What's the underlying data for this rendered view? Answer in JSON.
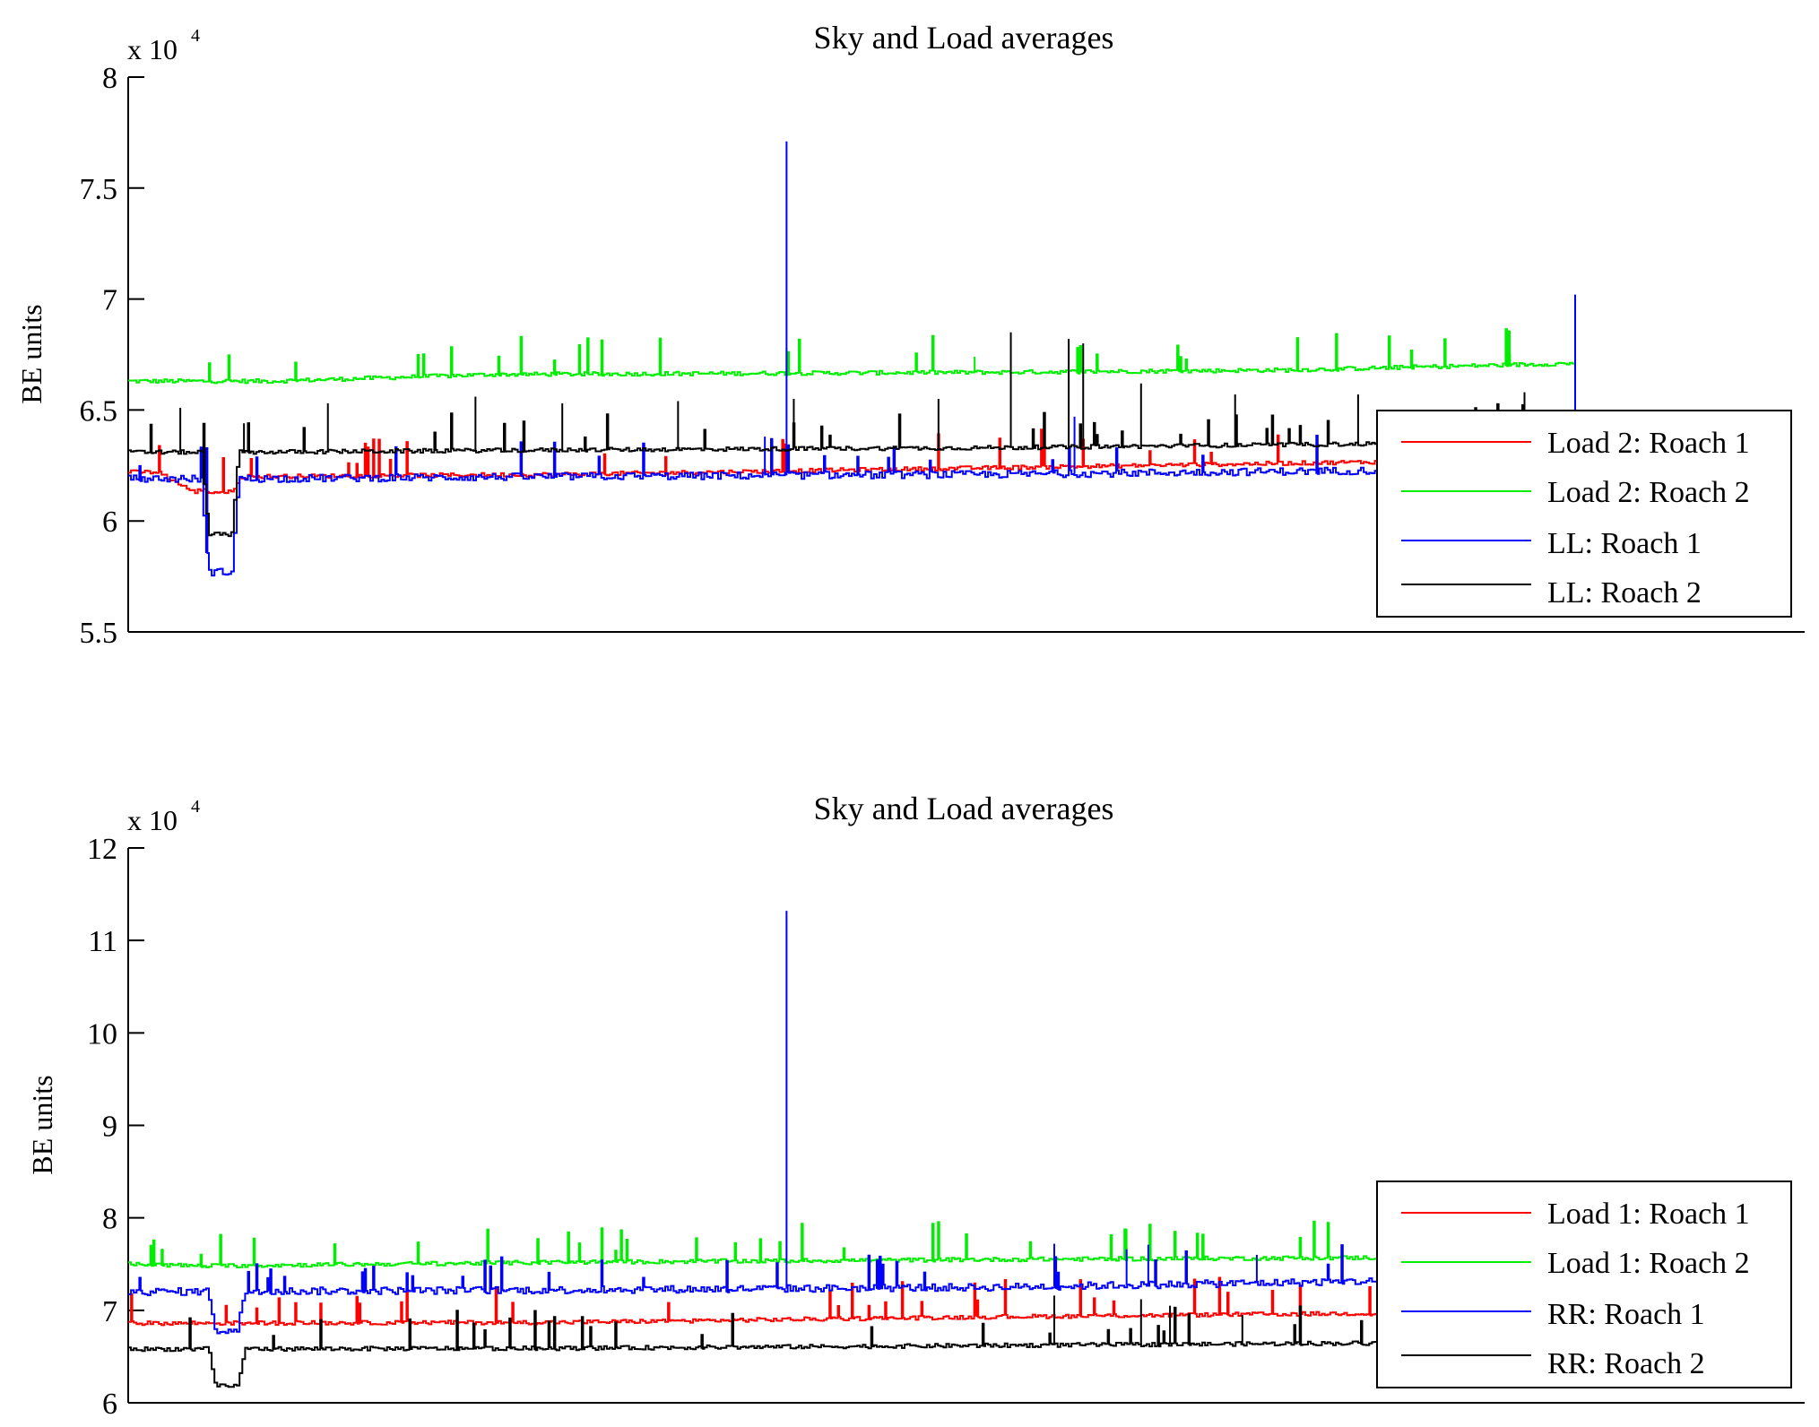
{
  "chart_data": [
    {
      "type": "line",
      "title": "Sky and Load averages",
      "xlabel": "",
      "ylabel": "BE units",
      "exponent_label": "x 10",
      "exponent_power": "4",
      "ylim": [
        5.5,
        8
      ],
      "yticks": [
        5.5,
        6,
        6.5,
        7,
        7.5,
        8
      ],
      "ytick_labels": [
        "5.5",
        "6",
        "6.5",
        "7",
        "7.5",
        "8"
      ],
      "x_range": [
        0,
        1000
      ],
      "legend_position": "right",
      "series": [
        {
          "name": "Load 2: Roach 1",
          "color": "#ff0000",
          "base": [
            [
              0,
              6.22
            ],
            [
              20,
              6.22
            ],
            [
              45,
              6.13
            ],
            [
              80,
              6.2
            ],
            [
              300,
              6.21
            ],
            [
              600,
              6.24
            ],
            [
              900,
              6.27
            ],
            [
              1000,
              6.28
            ]
          ],
          "dips": [
            [
              50,
              76,
              6.13
            ]
          ],
          "spikes": []
        },
        {
          "name": "Load 2: Roach 2",
          "color": "#00ee00",
          "base": [
            [
              0,
              6.63
            ],
            [
              100,
              6.63
            ],
            [
              250,
              6.66
            ],
            [
              600,
              6.67
            ],
            [
              800,
              6.68
            ],
            [
              1000,
              6.71
            ]
          ],
          "dips": [],
          "spikes": [
            [
              455,
              6.78
            ],
            [
              585,
              6.74
            ],
            [
              955,
              6.75
            ]
          ]
        },
        {
          "name": "LL: Roach 1",
          "color": "#0000ff",
          "base": [
            [
              0,
              6.19
            ],
            [
              20,
              6.19
            ],
            [
              80,
              6.19
            ],
            [
              300,
              6.2
            ],
            [
              600,
              6.21
            ],
            [
              900,
              6.23
            ],
            [
              1000,
              6.24
            ]
          ],
          "dips": [
            [
              50,
              76,
              5.77
            ]
          ],
          "spikes": [
            [
              455,
              7.71
            ],
            [
              1000,
              7.02
            ],
            [
              654,
              6.47
            ],
            [
              440,
              6.38
            ]
          ]
        },
        {
          "name": "LL: Roach 2",
          "color": "#000000",
          "base": [
            [
              0,
              6.31
            ],
            [
              20,
              6.31
            ],
            [
              80,
              6.31
            ],
            [
              300,
              6.32
            ],
            [
              600,
              6.33
            ],
            [
              900,
              6.35
            ],
            [
              1000,
              6.37
            ]
          ],
          "dips": [
            [
              50,
              76,
              5.94
            ]
          ],
          "spikes": [
            [
              36,
              6.51
            ],
            [
              80,
              6.44
            ],
            [
              138,
              6.53
            ],
            [
              240,
              6.56
            ],
            [
              300,
              6.53
            ],
            [
              380,
              6.54
            ],
            [
              460,
              6.55
            ],
            [
              560,
              6.55
            ],
            [
              610,
              6.85
            ],
            [
              650,
              6.82
            ],
            [
              660,
              6.8
            ],
            [
              700,
              6.62
            ],
            [
              765,
              6.57
            ],
            [
              850,
              6.57
            ],
            [
              965,
              6.58
            ]
          ]
        }
      ]
    },
    {
      "type": "line",
      "title": "Sky and Load averages",
      "xlabel": "",
      "ylabel": "BE units",
      "exponent_label": "x 10",
      "exponent_power": "4",
      "ylim": [
        6,
        12
      ],
      "yticks": [
        6,
        7,
        8,
        9,
        10,
        11,
        12
      ],
      "ytick_labels": [
        "6",
        "7",
        "8",
        "9",
        "10",
        "11",
        "12"
      ],
      "x_range": [
        0,
        1000
      ],
      "legend_position": "right",
      "series": [
        {
          "name": "Load 1: Roach 1",
          "color": "#ff0000",
          "base": [
            [
              0,
              6.86
            ],
            [
              300,
              6.87
            ],
            [
              600,
              6.93
            ],
            [
              800,
              6.96
            ],
            [
              1000,
              6.98
            ]
          ],
          "dips": [],
          "spikes": []
        },
        {
          "name": "Load 1: Roach 2",
          "color": "#00ee00",
          "base": [
            [
              0,
              7.5
            ],
            [
              50,
              7.48
            ],
            [
              300,
              7.52
            ],
            [
              600,
              7.55
            ],
            [
              1000,
              7.58
            ]
          ],
          "dips": [],
          "spikes": [
            [
              690,
              7.88
            ]
          ]
        },
        {
          "name": "RR: Roach 1",
          "color": "#0000ff",
          "base": [
            [
              0,
              7.2
            ],
            [
              300,
              7.22
            ],
            [
              600,
              7.25
            ],
            [
              800,
              7.3
            ],
            [
              1000,
              7.35
            ]
          ],
          "dips": [
            [
              55,
              80,
              6.78
            ]
          ],
          "spikes": [
            [
              455,
              11.32
            ],
            [
              640,
              7.72
            ],
            [
              690,
              7.66
            ],
            [
              705,
              7.71
            ],
            [
              780,
              7.6
            ]
          ]
        },
        {
          "name": "RR: Roach 2",
          "color": "#000000",
          "base": [
            [
              0,
              6.58
            ],
            [
              300,
              6.59
            ],
            [
              600,
              6.62
            ],
            [
              1000,
              6.66
            ]
          ],
          "dips": [
            [
              55,
              80,
              6.18
            ]
          ],
          "spikes": [
            [
              640,
              7.16
            ],
            [
              700,
              7.12
            ],
            [
              720,
              7.05
            ],
            [
              770,
              6.95
            ]
          ]
        }
      ]
    }
  ]
}
